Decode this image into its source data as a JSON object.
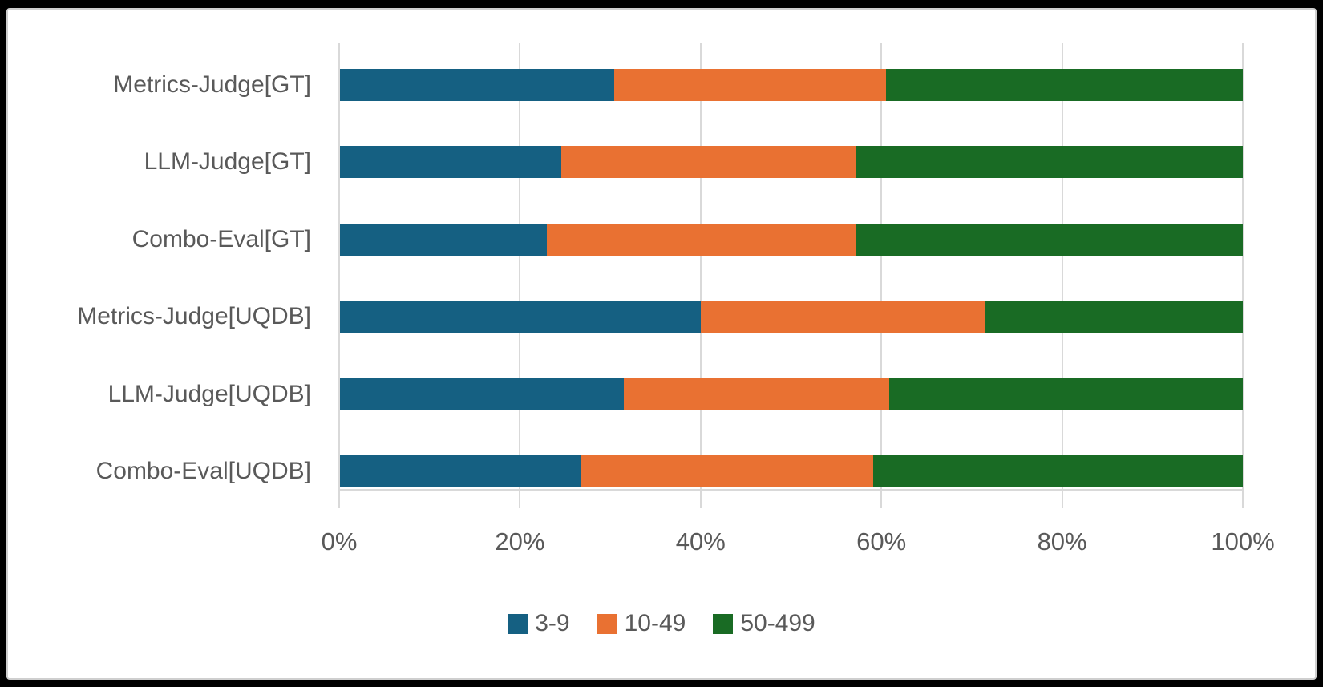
{
  "style": {
    "background": "#000000",
    "panel_background": "#ffffff",
    "panel_border_color": "#cfcfcf",
    "gridline_color": "#d9d9d9",
    "text_color": "#595959"
  },
  "chart_data": {
    "type": "bar",
    "orientation": "horizontal",
    "stacked": true,
    "stacked_total_percent": 100,
    "grid": "vertical",
    "legend_position": "bottom",
    "categories": [
      "Metrics-Judge[GT]",
      "LLM-Judge[GT]",
      "Combo-Eval[GT]",
      "Metrics-Judge[UQDB]",
      "LLM-Judge[UQDB]",
      "Combo-Eval[UQDB]"
    ],
    "series": [
      {
        "name": "3-9",
        "color": "#156082",
        "values": [
          30.4,
          24.5,
          22.9,
          40.0,
          31.4,
          26.7
        ]
      },
      {
        "name": "10-49",
        "color": "#E97132",
        "values": [
          30.1,
          32.7,
          34.3,
          31.5,
          29.4,
          32.4
        ]
      },
      {
        "name": "50-499",
        "color": "#196B24",
        "values": [
          39.5,
          42.8,
          42.8,
          28.5,
          39.2,
          40.9
        ]
      }
    ],
    "x_axis": {
      "range": [
        0,
        100
      ],
      "ticks": [
        {
          "label": "0%",
          "value": 0
        },
        {
          "label": "20%",
          "value": 20
        },
        {
          "label": "40%",
          "value": 40
        },
        {
          "label": "60%",
          "value": 60
        },
        {
          "label": "80%",
          "value": 80
        },
        {
          "label": "100%",
          "value": 100
        }
      ]
    }
  }
}
